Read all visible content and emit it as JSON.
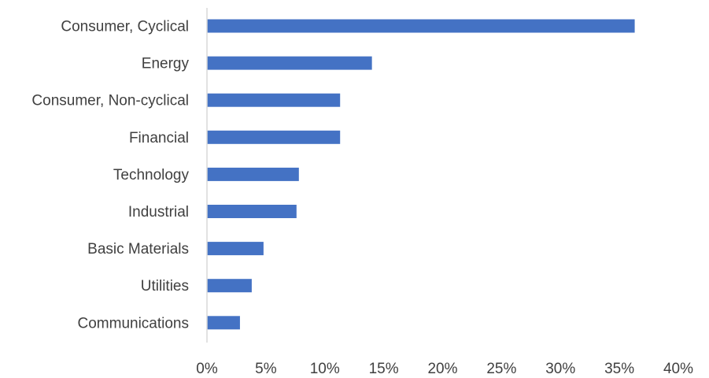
{
  "chart_data": {
    "type": "bar",
    "orientation": "horizontal",
    "categories": [
      "Consumer, Cyclical",
      "Energy",
      "Consumer, Non-cyclical",
      "Financial",
      "Technology",
      "Industrial",
      "Basic Materials",
      "Utilities",
      "Communications"
    ],
    "values": [
      36.3,
      14.0,
      11.3,
      11.3,
      7.8,
      7.6,
      4.8,
      3.8,
      2.8
    ],
    "xlim": [
      0,
      40
    ],
    "x_ticks": [
      "0%",
      "5%",
      "10%",
      "15%",
      "20%",
      "25%",
      "30%",
      "35%",
      "40%"
    ],
    "grid": false,
    "legend": "none",
    "bar_color": "#4472C4",
    "axis_color": "#D9D9D9",
    "text_color": "#404040"
  }
}
